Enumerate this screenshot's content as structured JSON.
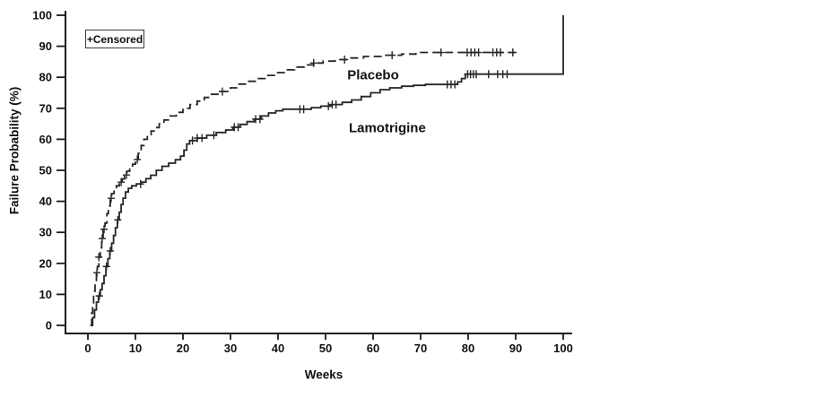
{
  "chart_data": {
    "type": "line",
    "subtype": "kaplan-meier-step",
    "title": "",
    "xlabel": "Weeks",
    "ylabel": "Failure Probability (%)",
    "legend_label": "+Censored",
    "xlim": [
      0,
      100
    ],
    "ylim": [
      0,
      100
    ],
    "x_ticks": [
      0,
      10,
      20,
      30,
      40,
      50,
      60,
      70,
      80,
      90,
      100
    ],
    "y_ticks": [
      0,
      10,
      20,
      30,
      40,
      50,
      60,
      70,
      80,
      90,
      100
    ],
    "grid": false,
    "legend_position": "top-left",
    "axis_color": "#1a1a1a",
    "series": [
      {
        "name": "Placebo",
        "line_style": "dashed",
        "color": "#262626",
        "label_at": {
          "week": 60,
          "prob": 80.5
        },
        "points": [
          [
            0.5,
            0
          ],
          [
            0.8,
            4
          ],
          [
            1,
            7
          ],
          [
            1.2,
            11
          ],
          [
            1.5,
            14
          ],
          [
            1.8,
            17
          ],
          [
            2,
            19
          ],
          [
            2.3,
            22
          ],
          [
            2.6,
            25
          ],
          [
            2.9,
            28
          ],
          [
            3.2,
            31
          ],
          [
            3.6,
            33
          ],
          [
            4,
            36
          ],
          [
            4.3,
            38.5
          ],
          [
            4.7,
            41
          ],
          [
            5,
            42.5
          ],
          [
            5.5,
            43.5
          ],
          [
            6,
            45
          ],
          [
            6.6,
            46.2
          ],
          [
            7.2,
            47.2
          ],
          [
            7.7,
            48.5
          ],
          [
            8.2,
            49.7
          ],
          [
            8.8,
            50.8
          ],
          [
            9.4,
            52
          ],
          [
            10,
            53.5
          ],
          [
            10.6,
            55.5
          ],
          [
            11.2,
            58
          ],
          [
            11.8,
            60
          ],
          [
            12.5,
            61.5
          ],
          [
            13.3,
            62.7
          ],
          [
            14.2,
            63.8
          ],
          [
            15,
            65
          ],
          [
            16,
            66.2
          ],
          [
            17.3,
            67.5
          ],
          [
            18.6,
            68.7
          ],
          [
            20,
            70
          ],
          [
            21.5,
            71.2
          ],
          [
            23,
            72.3
          ],
          [
            24.5,
            73.5
          ],
          [
            26,
            74.5
          ],
          [
            28,
            75.4
          ],
          [
            30,
            76.6
          ],
          [
            31.8,
            77.8
          ],
          [
            33.6,
            78.7
          ],
          [
            35.5,
            79.6
          ],
          [
            37.5,
            80.6
          ],
          [
            39.5,
            81.5
          ],
          [
            41.5,
            82.4
          ],
          [
            43.5,
            83.3
          ],
          [
            45.5,
            84
          ],
          [
            47.5,
            84.6
          ],
          [
            49.5,
            85.2
          ],
          [
            52,
            85.7
          ],
          [
            55,
            86.2
          ],
          [
            58,
            86.7
          ],
          [
            62,
            87.1
          ],
          [
            66,
            87.5
          ],
          [
            69,
            88
          ],
          [
            90,
            88
          ]
        ],
        "censor_weeks": [
          1.9,
          2.3,
          3,
          3.4,
          4.9,
          7,
          8.1,
          10.4,
          28.3,
          47.5,
          54,
          64,
          74.3,
          79.8,
          80.6,
          81.4,
          82.2,
          85.2,
          86,
          86.8,
          89.4
        ]
      },
      {
        "name": "Lamotrigine",
        "line_style": "solid",
        "color": "#262626",
        "label_at": {
          "week": 63,
          "prob": 63.5
        },
        "points": [
          [
            0.7,
            0
          ],
          [
            1,
            2.5
          ],
          [
            1.4,
            5
          ],
          [
            1.8,
            7.5
          ],
          [
            2.2,
            9.5
          ],
          [
            2.6,
            11.5
          ],
          [
            3,
            13.5
          ],
          [
            3.4,
            16
          ],
          [
            3.8,
            19
          ],
          [
            4.2,
            21.5
          ],
          [
            4.6,
            24
          ],
          [
            5,
            26.5
          ],
          [
            5.4,
            29
          ],
          [
            5.8,
            31.5
          ],
          [
            6.2,
            34
          ],
          [
            6.6,
            36.5
          ],
          [
            7,
            39
          ],
          [
            7.4,
            41
          ],
          [
            7.9,
            43
          ],
          [
            8.5,
            44.2
          ],
          [
            9.2,
            45
          ],
          [
            10.2,
            45.6
          ],
          [
            11.2,
            46.2
          ],
          [
            12.2,
            47.3
          ],
          [
            13.2,
            48.4
          ],
          [
            14.4,
            50
          ],
          [
            15.6,
            51.3
          ],
          [
            17,
            52.3
          ],
          [
            18.4,
            53.4
          ],
          [
            19.5,
            54.6
          ],
          [
            20.2,
            56.5
          ],
          [
            20.8,
            58.5
          ],
          [
            21.4,
            59.6
          ],
          [
            23,
            60.4
          ],
          [
            25,
            61.3
          ],
          [
            27,
            62.2
          ],
          [
            29,
            63
          ],
          [
            30.5,
            63.9
          ],
          [
            32,
            64.8
          ],
          [
            33.5,
            65.7
          ],
          [
            35,
            66.5
          ],
          [
            36.5,
            67.5
          ],
          [
            38,
            68.5
          ],
          [
            39.5,
            69.2
          ],
          [
            41,
            69.7
          ],
          [
            47,
            70.2
          ],
          [
            49,
            70.7
          ],
          [
            51,
            71.2
          ],
          [
            53.5,
            71.9
          ],
          [
            55.5,
            72.7
          ],
          [
            57.5,
            73.8
          ],
          [
            59.5,
            75
          ],
          [
            61.5,
            76
          ],
          [
            63.5,
            76.6
          ],
          [
            66,
            77.1
          ],
          [
            68.5,
            77.4
          ],
          [
            71,
            77.7
          ],
          [
            77.8,
            78.5
          ],
          [
            78.6,
            79.6
          ],
          [
            79.4,
            81
          ],
          [
            100,
            81
          ],
          [
            100,
            100
          ]
        ],
        "censor_weeks": [
          2.4,
          3.9,
          4.7,
          6.3,
          11.1,
          22,
          23,
          24,
          26.5,
          30.8,
          31.6,
          35.3,
          36.2,
          44.6,
          45.4,
          50.6,
          51.4,
          52.2,
          75.6,
          76.4,
          77.2,
          79.9,
          80.5,
          81.1,
          81.7,
          84.3,
          86.2,
          87.3,
          88.2
        ]
      }
    ]
  }
}
